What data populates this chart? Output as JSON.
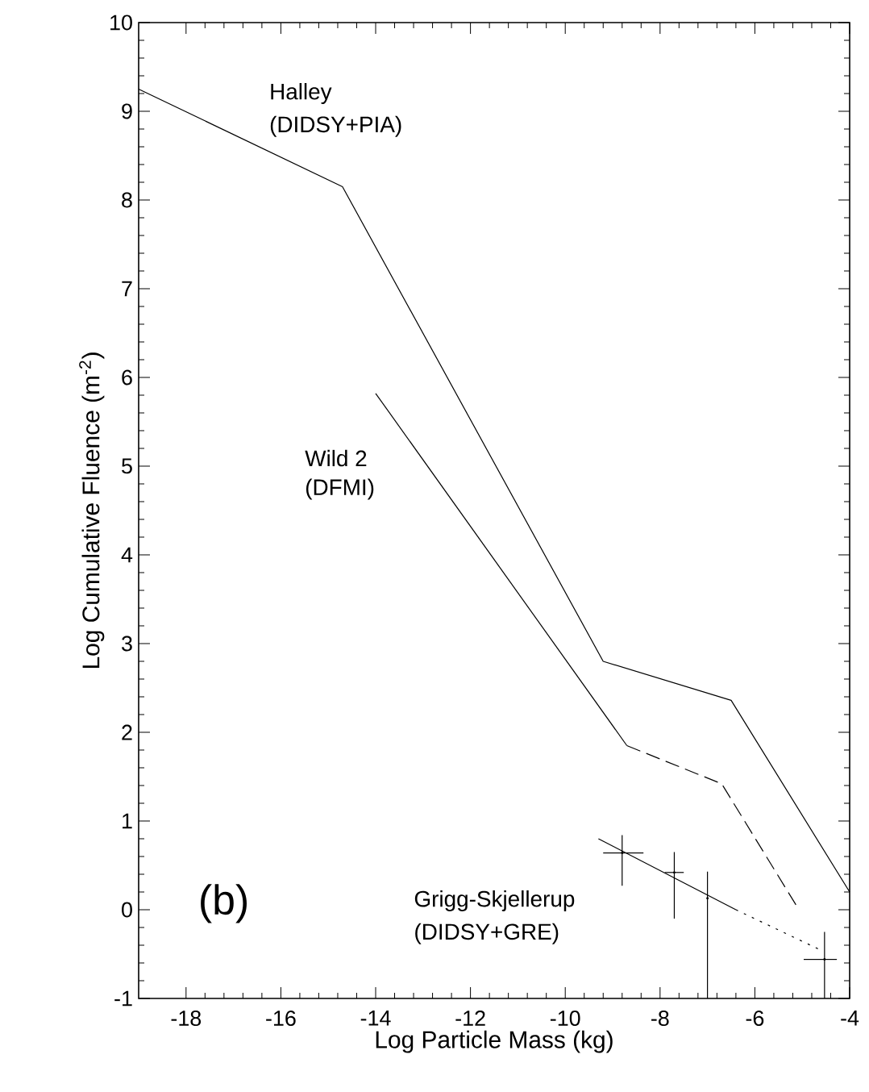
{
  "chart_data": {
    "type": "line",
    "xlabel": "Log Particle Mass (kg)",
    "ylabel": "Log Cumulative Fluence (m$^{-2}$)",
    "xlim": [
      -19,
      -4
    ],
    "ylim": [
      -1,
      10
    ],
    "xticks": [
      -18,
      -16,
      -14,
      -12,
      -10,
      -8,
      -6,
      -4
    ],
    "yticks": [
      -1,
      0,
      1,
      2,
      3,
      4,
      5,
      6,
      7,
      8,
      9,
      10
    ],
    "series": [
      {
        "color": "#000000",
        "line_style": "solid",
        "x": [
          -19,
          -14.7,
          -9.2,
          -6.5,
          -4
        ],
        "values": [
          9.25,
          8.15,
          2.8,
          2.36,
          0.2
        ]
      },
      {
        "color": "#000000",
        "line_style": "solid",
        "x": [
          -14,
          -8.7
        ],
        "values": [
          5.82,
          1.85
        ]
      },
      {
        "color": "#000000",
        "line_style": "dashed",
        "x": [
          -8.7,
          -6.7,
          -5.07
        ],
        "values": [
          1.85,
          1.42,
          0.0
        ]
      },
      {
        "color": "#000000",
        "line_style": "solid",
        "x": [
          -9.3,
          -6.4
        ],
        "values": [
          0.8,
          0.0
        ]
      },
      {
        "color": "#000000",
        "line_style": "dotted",
        "x": [
          -6.4,
          -4.63
        ],
        "values": [
          0.0,
          -0.45
        ]
      },
      {
        "type": "scatter",
        "color": "#000000",
        "x": [
          -8.8,
          -7.7,
          -7.0,
          -4.53
        ],
        "values": [
          0.64,
          0.42,
          0.13,
          -0.56
        ],
        "errors": [
          [
            0.27,
            0.84
          ],
          [
            -0.1,
            0.65
          ],
          [
            -1,
            0.43
          ],
          [
            -1,
            -0.25
          ]
        ],
        "xerrors": [
          [
            -9.2,
            -8.35
          ],
          [
            -7.9,
            -7.5
          ],
          null,
          [
            -4.97,
            -4.27
          ]
        ]
      }
    ],
    "annotations": [
      "Halley",
      "(DIDSY+PIA)",
      "Wild 2",
      "(DFMI)",
      "Grigg-Skjellerup",
      "(DIDSY+GRE)",
      "(b)"
    ]
  }
}
